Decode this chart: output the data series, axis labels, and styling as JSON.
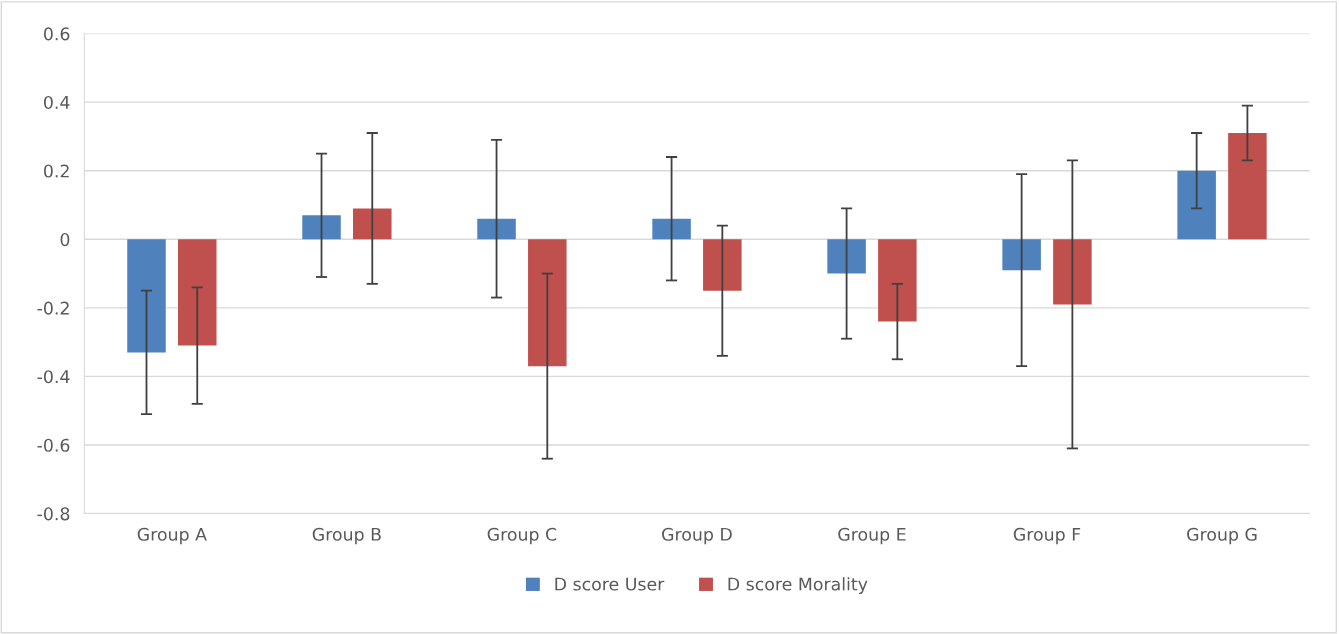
{
  "chart_data": {
    "type": "bar",
    "categories": [
      "Group A",
      "Group B",
      "Group C",
      "Group D",
      "Group E",
      "Group F",
      "Group G"
    ],
    "series": [
      {
        "name": "D score User",
        "color": "#4f81bd",
        "values": [
          -0.33,
          0.07,
          0.06,
          0.06,
          -0.1,
          -0.09,
          0.2
        ],
        "errors": [
          0.18,
          0.18,
          0.23,
          0.18,
          0.19,
          0.28,
          0.11
        ]
      },
      {
        "name": "D score Morality",
        "color": "#c0504d",
        "values": [
          -0.31,
          0.09,
          -0.37,
          -0.15,
          -0.24,
          -0.19,
          0.31
        ],
        "errors": [
          0.17,
          0.22,
          0.27,
          0.19,
          0.11,
          0.42,
          0.08
        ]
      }
    ],
    "ylim": [
      -0.8,
      0.6
    ],
    "yticks": [
      -0.8,
      -0.6,
      -0.4,
      -0.2,
      0,
      0.2,
      0.4,
      0.6
    ],
    "grid": "y",
    "legend": "bottom"
  }
}
